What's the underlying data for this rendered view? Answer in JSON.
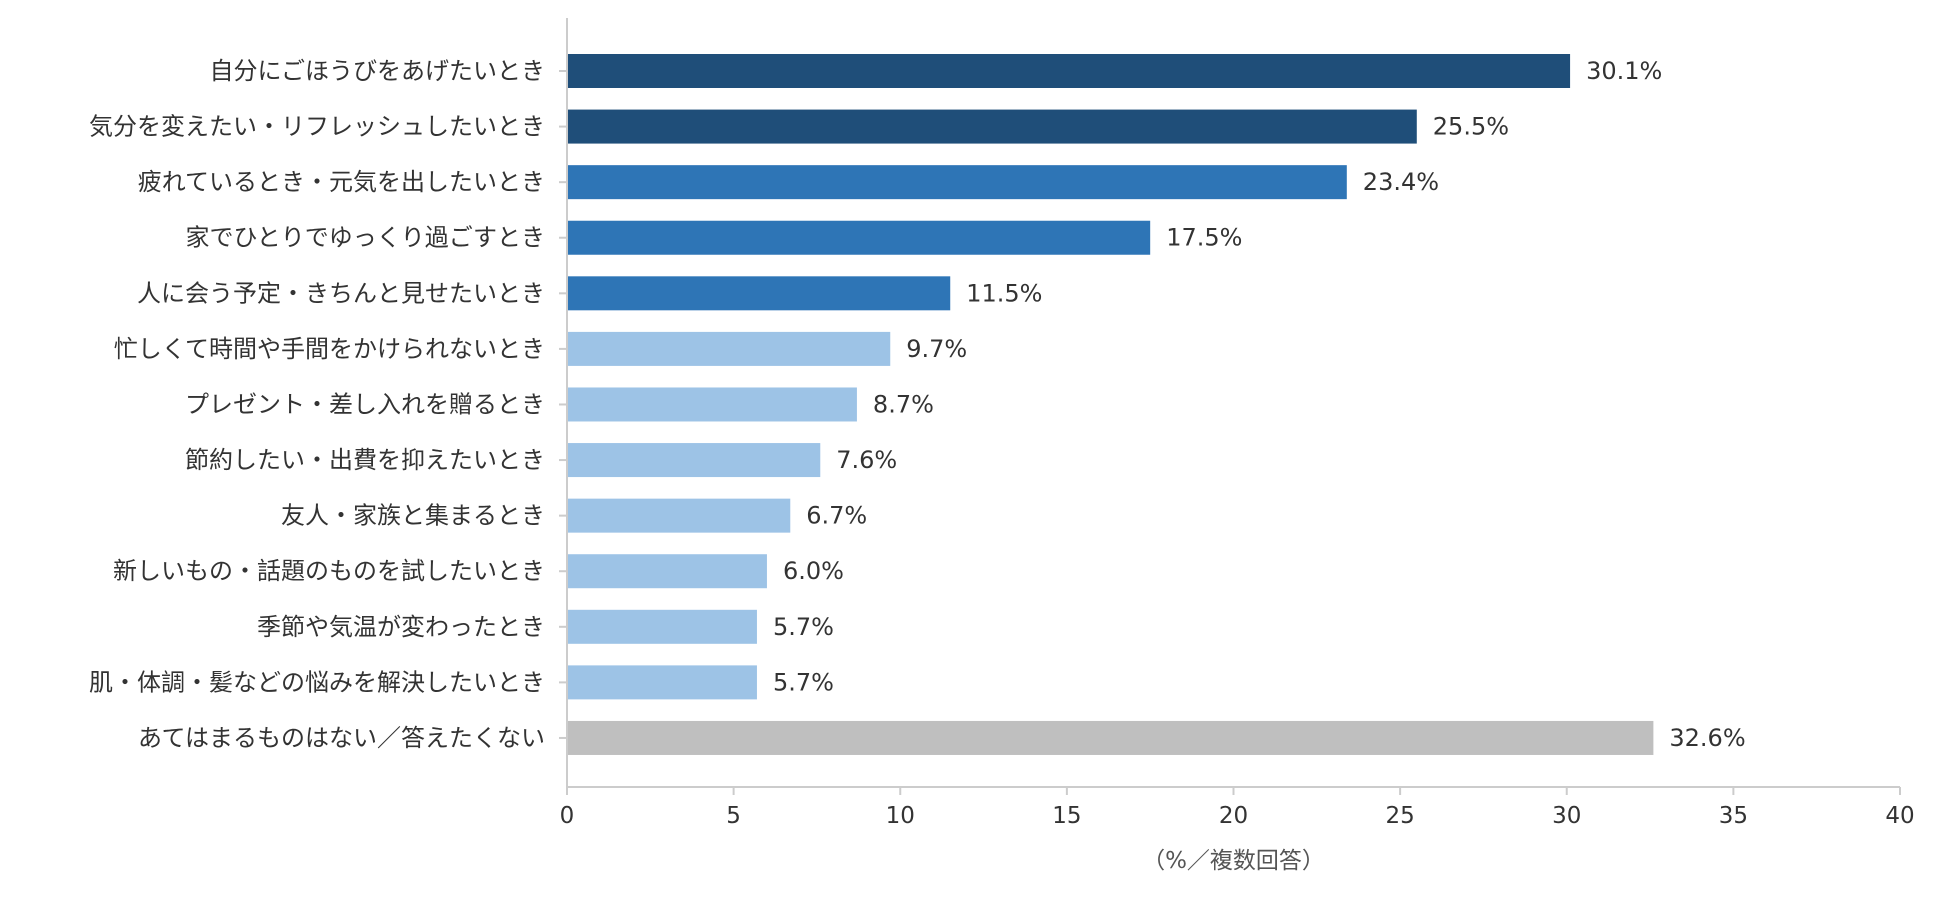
{
  "chart_data": {
    "type": "bar",
    "orientation": "horizontal",
    "categories": [
      "自分にごほうびをあげたいとき",
      "気分を変えたい・リフレッシュしたいとき",
      "疲れているとき・元気を出したいとき",
      "家でひとりでゆっくり過ごすとき",
      "人に会う予定・きちんと見せたいとき",
      "忙しくて時間や手間をかけられないとき",
      "プレゼント・差し入れを贈るとき",
      "節約したい・出費を抑えたいとき",
      "友人・家族と集まるとき",
      "新しいもの・話題のものを試したいとき",
      "季節や気温が変わったとき",
      "肌・体調・髪などの悩みを解決したいとき",
      "あてはまるものはない／答えたくない"
    ],
    "values": [
      30.1,
      25.5,
      23.4,
      17.5,
      11.5,
      9.7,
      8.7,
      7.6,
      6.7,
      6.0,
      5.7,
      5.7,
      32.6
    ],
    "value_labels": [
      "30.1%",
      "25.5%",
      "23.4%",
      "17.5%",
      "11.5%",
      "9.7%",
      "8.7%",
      "7.6%",
      "6.7%",
      "6.0%",
      "5.7%",
      "5.7%",
      "32.6%"
    ],
    "bar_colors": [
      "#1f4e79",
      "#1f4e79",
      "#2e75b6",
      "#2e75b6",
      "#2e75b6",
      "#9dc3e6",
      "#9dc3e6",
      "#9dc3e6",
      "#9dc3e6",
      "#9dc3e6",
      "#9dc3e6",
      "#9dc3e6",
      "#bfbfbf"
    ],
    "xlim": [
      0,
      40
    ],
    "xticks": [
      0,
      5,
      10,
      15,
      20,
      25,
      30,
      35,
      40
    ],
    "xlabel": "（%／複数回答）",
    "title": "",
    "grid": false,
    "legend": "none"
  }
}
